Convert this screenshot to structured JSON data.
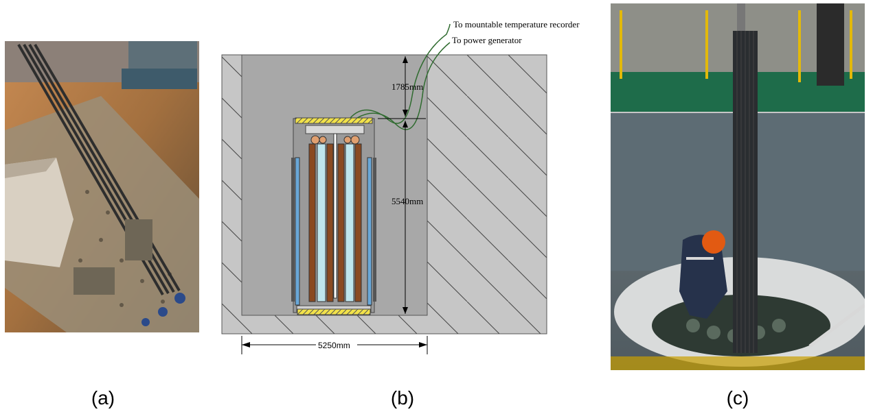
{
  "panels": {
    "a": {
      "caption": "(a)"
    },
    "b": {
      "caption": "(b)"
    },
    "c": {
      "caption": "(c)"
    }
  },
  "diagram": {
    "label_temp_recorder": "To mountable temperature recorder",
    "label_power_generator": "To power generator",
    "dim_top": "1785mm",
    "dim_height": "5540mm",
    "dim_width": "5250mm"
  },
  "colors": {
    "concrete_dark": "#a4a4a4",
    "concrete_light": "#c8c8c8",
    "heater_brown": "#8a4a22",
    "water_blue": "#6aa8d8",
    "yellow_plate": "#f2e24a",
    "cable_green": "#2f6b2f"
  }
}
